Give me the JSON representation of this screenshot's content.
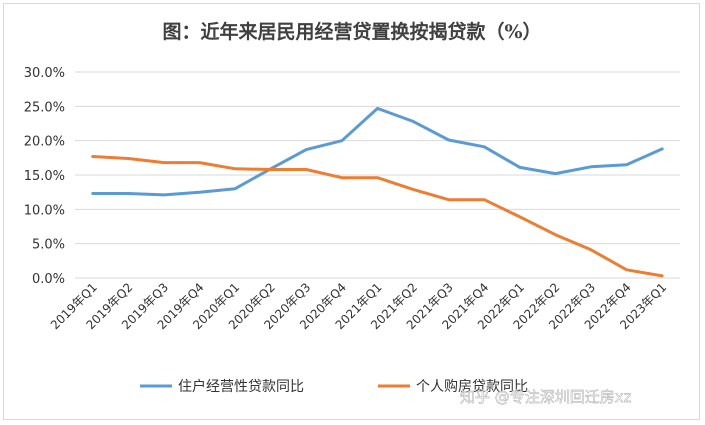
{
  "chart_data": {
    "type": "line",
    "title": "图：近年来居民用经营贷置换按揭贷款（%）",
    "categories": [
      "2019年Q1",
      "2019年Q2",
      "2019年Q3",
      "2019年Q4",
      "2020年Q1",
      "2020年Q2",
      "2020年Q3",
      "2020年Q4",
      "2021年Q1",
      "2021年Q2",
      "2021年Q3",
      "2021年Q4",
      "2022年Q1",
      "2022年Q2",
      "2022年Q3",
      "2022年Q4",
      "2023年Q1"
    ],
    "y_ticks": [
      "0.0%",
      "5.0%",
      "10.0%",
      "15.0%",
      "20.0%",
      "25.0%",
      "30.0%"
    ],
    "ylim": [
      0,
      30
    ],
    "grid": true,
    "legend_position": "bottom",
    "series": [
      {
        "name": "住户经营性贷款同比",
        "color": "#5b9bd5",
        "values": [
          12.3,
          12.3,
          12.1,
          12.5,
          13.0,
          15.9,
          18.7,
          20.0,
          24.7,
          22.8,
          20.1,
          19.1,
          16.1,
          15.2,
          16.2,
          16.5,
          18.8
        ]
      },
      {
        "name": "个人购房贷款同比",
        "color": "#ed7d31",
        "values": [
          17.7,
          17.4,
          16.8,
          16.8,
          15.9,
          15.8,
          15.8,
          14.6,
          14.6,
          12.9,
          11.4,
          11.4,
          8.9,
          6.3,
          4.1,
          1.2,
          0.3
        ]
      }
    ]
  },
  "watermark": "知乎 @专注深圳回迁房xz"
}
